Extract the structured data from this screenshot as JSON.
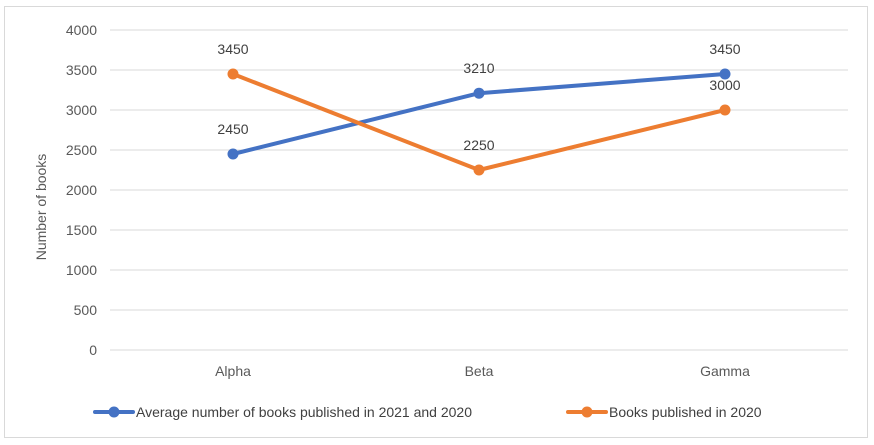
{
  "chart_data": {
    "type": "line",
    "title": "",
    "xlabel": "",
    "ylabel": "Number of books",
    "categories": [
      "Alpha",
      "Beta",
      "Gamma"
    ],
    "ylim": [
      0,
      4000
    ],
    "yticks": [
      0,
      500,
      1000,
      1500,
      2000,
      2500,
      3000,
      3500,
      4000
    ],
    "grid": true,
    "legend_position": "bottom",
    "series": [
      {
        "name": "Average number of books published in 2021 and 2020",
        "values": [
          2450,
          3210,
          3450
        ],
        "color": "#4472c4"
      },
      {
        "name": "Books published in 2020",
        "values": [
          3450,
          2250,
          3000
        ],
        "color": "#ed7d31"
      }
    ]
  }
}
